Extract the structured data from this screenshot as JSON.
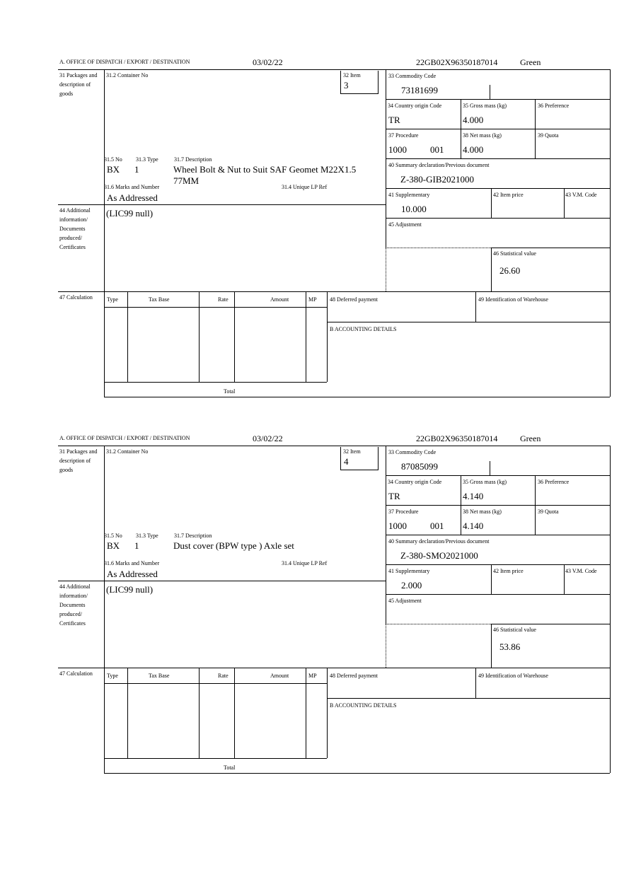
{
  "labels": {
    "office": "A.  OFFICE OF DISPATCH / EXPORT / DESTINATION",
    "box31": "31 Packages and description of goods",
    "container": "31.2 Container No",
    "item": "32 Item",
    "no": "31.5 No",
    "type": "31.3 Type",
    "description": "31.7 Description",
    "marks": "31.6 Marks and Number",
    "unique": "31.4 Unique LP Ref",
    "box44": "44 Additional information/ Documents produced/ Certificates",
    "box47": "47 Calculation",
    "col_type": "Type",
    "col_taxbase": "Tax Base",
    "col_rate": "Rate",
    "col_amount": "Amount",
    "col_mp": "MP",
    "total": "Total",
    "deferred": "48 Deferred payment",
    "warehouse": "49 Identification of Warehouse",
    "accounting": "B ACCOUNTING DETAILS",
    "commodity": "33 Commodity Code",
    "origin": "34 Country origin Code",
    "gross": "35 Gross mass (kg)",
    "preference": "36 Preference",
    "procedure": "37 Procedure",
    "net": "38 Net mass (kg)",
    "quota": "39 Quota",
    "summary": "40 Summary declaration/Previous document",
    "supplementary": "41 Supplementary",
    "price": "42 Item price",
    "vm": "43 V.M. Code",
    "adjustment": "45 Adjustment",
    "statistical": "46 Statistical value"
  },
  "forms": [
    {
      "date": "03/02/22",
      "reference": "22GB02X96350187014",
      "route": "Green",
      "item": "3",
      "package_kind": "BX",
      "package_count": "1",
      "description_line1": "Wheel Bolt & Nut to Suit SAF Geomet M22X1.5",
      "description_line2": "77MM",
      "marks": "As Addressed",
      "additional_info": "(LIC99 null)",
      "commodity_code": "73181699",
      "origin": "TR",
      "gross_mass": "4.000",
      "procedure": "1000",
      "procedure_additional": "001",
      "net_mass": "4.000",
      "previous_document": "Z-380-GIB2021000",
      "supplementary": "10.000",
      "statistical_value": "26.60"
    },
    {
      "date": "03/02/22",
      "reference": "22GB02X96350187014",
      "route": "Green",
      "item": "4",
      "package_kind": "BX",
      "package_count": "1",
      "description_line1": "Dust cover (BPW type ) Axle set",
      "description_line2": "",
      "marks": "As Addressed",
      "additional_info": "(LIC99 null)",
      "commodity_code": "87085099",
      "origin": "TR",
      "gross_mass": "4.140",
      "procedure": "1000",
      "procedure_additional": "001",
      "net_mass": "4.140",
      "previous_document": "Z-380-SMO2021000",
      "supplementary": "2.000",
      "statistical_value": "53.86"
    }
  ]
}
